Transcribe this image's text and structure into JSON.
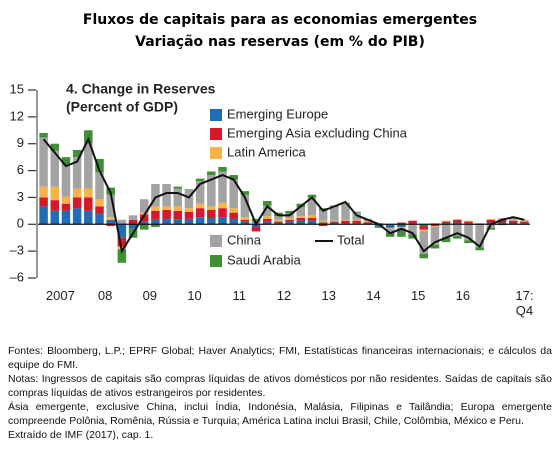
{
  "header": {
    "title": "Fluxos de capitais para as economias emergentes",
    "subtitle": "Variação nas reservas (em % do PIB)"
  },
  "chart_data": {
    "type": "bar",
    "stacked": true,
    "title": "4. Change in Reserves",
    "subtitle": "(Percent of GDP)",
    "categories": [
      null,
      "2007",
      null,
      null,
      null,
      "08",
      null,
      null,
      null,
      "09",
      null,
      null,
      null,
      "10",
      null,
      null,
      null,
      "11",
      null,
      null,
      null,
      "12",
      null,
      null,
      null,
      "13",
      null,
      null,
      null,
      "14",
      null,
      null,
      null,
      "15",
      null,
      null,
      null,
      "16",
      null,
      null,
      null,
      null,
      null,
      "17:\nQ4"
    ],
    "series": [
      {
        "name": "Emerging Europe",
        "color": "#1f6db5",
        "values": [
          2,
          1.5,
          1.5,
          1.8,
          1.5,
          1.2,
          0.5,
          -1.5,
          -0.5,
          0.3,
          0.5,
          0.6,
          0.5,
          0.6,
          0.8,
          0.7,
          0.8,
          0.6,
          0.3,
          -0.3,
          0.3,
          0.2,
          0.3,
          0.4,
          0.4,
          0.2,
          0.2,
          0.1,
          0.1,
          0,
          -0.2,
          -0.4,
          -0.3,
          0.1,
          -0.2,
          0.1,
          0.1,
          0.2,
          0.1,
          0.1,
          0.2,
          0.2,
          0.2,
          0.1
        ]
      },
      {
        "name": "Emerging Asia excluding China",
        "color": "#d7182a",
        "values": [
          1,
          1.2,
          0.8,
          1.2,
          1.5,
          0.8,
          -0.2,
          -1,
          0.5,
          0.8,
          1,
          1,
          1,
          0.8,
          1,
          0.9,
          1,
          0.7,
          0.2,
          -0.5,
          0.3,
          0.1,
          0.2,
          0.3,
          0.3,
          -0.2,
          0.1,
          0.3,
          0.3,
          0.2,
          0.1,
          0,
          0.2,
          0.3,
          -0.4,
          -0.2,
          0.2,
          0.3,
          0.2,
          -0.1,
          0.3,
          0.3,
          0.2,
          0.2
        ]
      },
      {
        "name": "Latin America",
        "color": "#f7b347",
        "values": [
          1.2,
          1.5,
          0.8,
          1,
          1,
          0.8,
          0.3,
          -0.3,
          0,
          0.2,
          0.5,
          0.4,
          0.5,
          0.4,
          0.5,
          0.4,
          0.6,
          0.5,
          0.3,
          0.1,
          0.3,
          0.2,
          0.2,
          0.2,
          0.3,
          0.2,
          0.1,
          0.1,
          0.1,
          0.1,
          0,
          -0.1,
          -0.1,
          -0.1,
          -0.2,
          -0.1,
          0.1,
          0.1,
          0.1,
          0,
          0.1,
          0.1,
          0.1,
          0.1
        ]
      },
      {
        "name": "China",
        "color": "#a3a3a3",
        "values": [
          5.5,
          4,
          3.5,
          3.5,
          5,
          3,
          2.5,
          0.5,
          0.5,
          1.5,
          2.5,
          2.5,
          2,
          2,
          2.5,
          3.5,
          3.5,
          3.2,
          2.5,
          0.2,
          1.2,
          0.4,
          0.5,
          1,
          2,
          1.2,
          1.5,
          1.8,
          0.8,
          0.3,
          0,
          -0.4,
          -0.2,
          -1,
          -2.5,
          -2,
          -1.5,
          -1.3,
          -1.8,
          -2.5,
          -0.4,
          0.1,
          0.3,
          0.1
        ]
      },
      {
        "name": "Saudi Arabia",
        "color": "#3f8f35",
        "values": [
          0.5,
          0.8,
          0.9,
          0.8,
          1.5,
          1.5,
          0.8,
          -1.5,
          -1,
          -0.6,
          -0.3,
          0,
          0.2,
          0.1,
          0.3,
          0.4,
          0.5,
          0.5,
          0.4,
          0.3,
          0.5,
          0.4,
          0.3,
          0.4,
          0.3,
          0.2,
          0.2,
          0.1,
          0.1,
          0,
          -0.2,
          -0.5,
          -0.8,
          -0.5,
          -0.5,
          -0.4,
          -0.5,
          -0.3,
          -0.3,
          -0.3,
          -0.2,
          -0.1,
          0,
          0
        ]
      },
      {
        "name": "Total",
        "type": "line",
        "color": "#111111",
        "values": [
          9.5,
          8,
          6.5,
          7,
          9.5,
          6,
          3.5,
          -3,
          -1,
          1,
          3,
          3.5,
          3.5,
          3,
          4.5,
          5,
          5.5,
          5,
          3,
          0,
          2,
          1,
          1,
          2,
          3,
          1.5,
          2,
          2.5,
          1,
          0.5,
          0,
          -1,
          -0.5,
          -1,
          -3,
          -2,
          -1.5,
          -1,
          -1.5,
          -2.5,
          0,
          0.5,
          0.8,
          0.5
        ]
      }
    ],
    "ylim": [
      -6,
      15
    ],
    "yticks": [
      15,
      12,
      9,
      6,
      3,
      0,
      {
        "value": -3,
        "label": "–3"
      },
      {
        "value": -6,
        "label": "–6"
      }
    ]
  },
  "notes": [
    "Fontes: Bloomberg, L.P.; EPRF Global; Haver Analytics; FMI, Estatísticas financeiras internacionais; e cálculos da equipe do FMI.",
    "Notas: Ingressos de capitais são compras líquidas de ativos domésticos por não residentes. Saídas de capitais são compras líquidas de ativos estrangeiros por residentes.",
    "Ásia emergente, exclusive China, inclui Índia, Indonésia, Malásia, Filipinas e Tailândia; Europa emergente compreende Polônia, Romênia, Rússia e Turquia; América Latina inclui Brasil, Chile, Colômbia, México e Peru.",
    "Extraído de IMF (2017), cap. 1."
  ]
}
